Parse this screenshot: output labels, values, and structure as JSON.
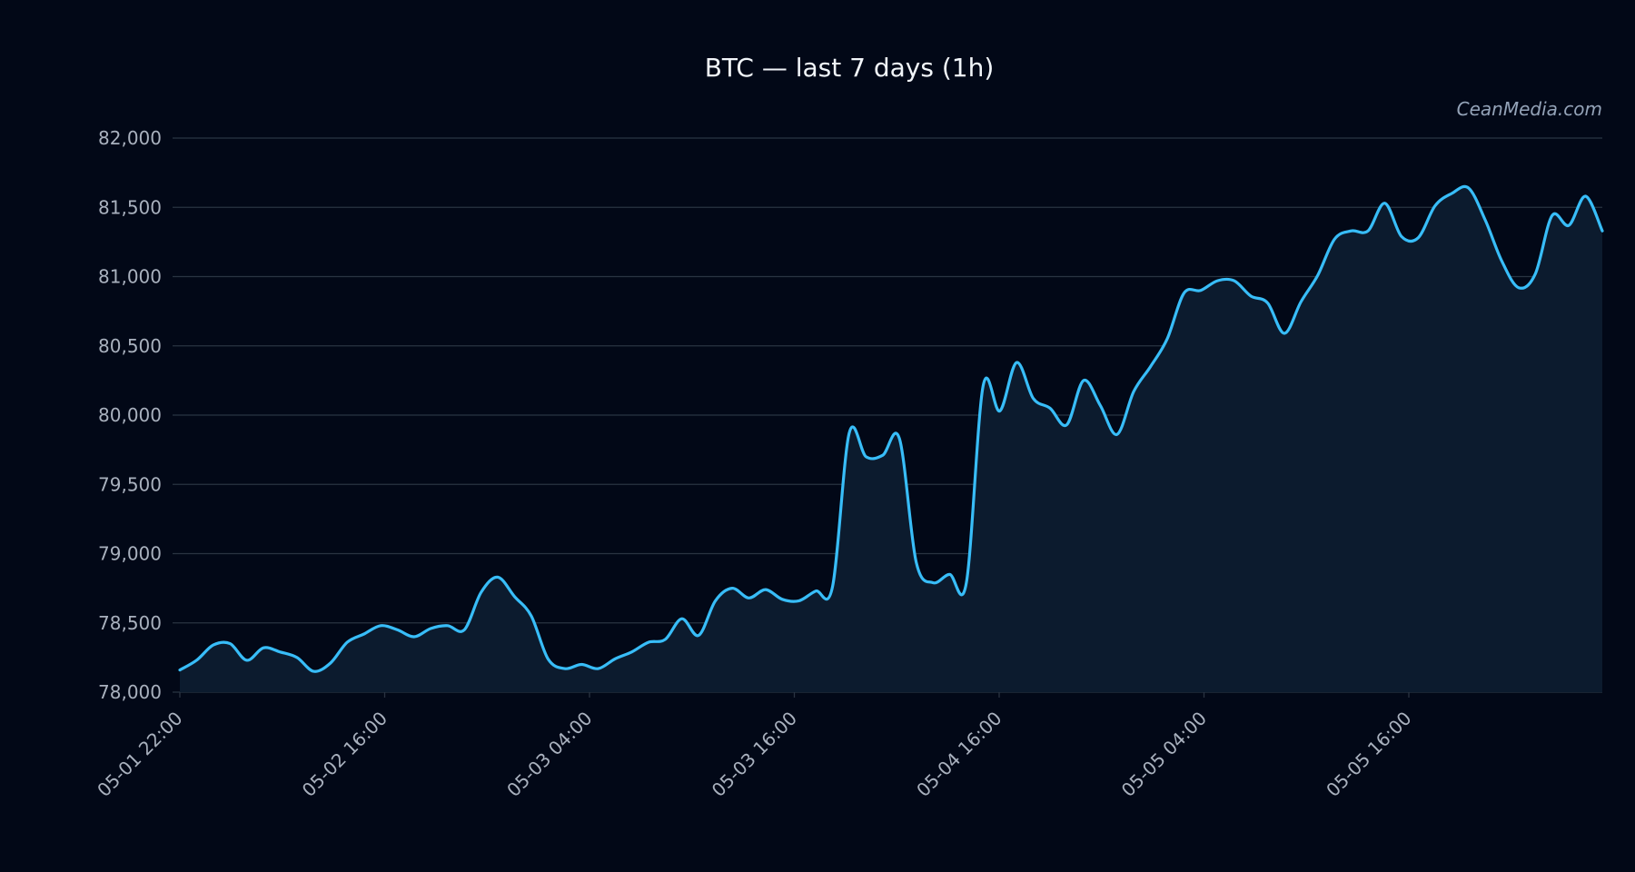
{
  "chart_data": {
    "type": "area",
    "title": "BTC — last 7 days (1h)",
    "watermark": "CeanMedia.com",
    "xlabel": "",
    "ylabel": "",
    "ylim": [
      78000,
      82000
    ],
    "y_ticks": [
      78000,
      78500,
      79000,
      79500,
      80000,
      80500,
      81000,
      81500,
      82000
    ],
    "y_tick_labels": [
      "78,000",
      "78,500",
      "79,000",
      "79,500",
      "80,000",
      "80,500",
      "81,000",
      "81,500",
      "82,000"
    ],
    "x_tick_labels": [
      "05-01 22:00",
      "05-02 16:00",
      "05-03 04:00",
      "05-03 16:00",
      "05-04 16:00",
      "05-05 04:00",
      "05-05 16:00"
    ],
    "grid": "horizontal",
    "colors": {
      "background": "#020817",
      "line": "#38bdf8",
      "fill": "#0c1b2e",
      "grid": "#2a3442",
      "axis_text": "#a9b1be",
      "title": "#f1f5f9",
      "watermark": "#94a3b8"
    },
    "series": [
      {
        "values": [
          78160,
          78230,
          78340,
          78350,
          78230,
          78320,
          78290,
          78250,
          78150,
          78210,
          78360,
          78420,
          78480,
          78450,
          78400,
          78460,
          78480,
          78450,
          78720,
          78830,
          78690,
          78550,
          78240,
          78170,
          78200,
          78170,
          78240,
          78290,
          78360,
          78380,
          78530,
          78410,
          78660,
          78750,
          78680,
          78740,
          78670,
          78660,
          78730,
          78760,
          79870,
          79700,
          79710,
          79830,
          78940,
          78790,
          78850,
          78790,
          80210,
          80030,
          80380,
          80120,
          80050,
          79930,
          80250,
          80070,
          79860,
          80170,
          80350,
          80550,
          80880,
          80900,
          80970,
          80970,
          80860,
          80810,
          80590,
          80820,
          81010,
          81270,
          81330,
          81330,
          81530,
          81290,
          81280,
          81510,
          81600,
          81640,
          81410,
          81110,
          80920,
          81020,
          81440,
          81370,
          81580,
          81330
        ]
      }
    ]
  }
}
